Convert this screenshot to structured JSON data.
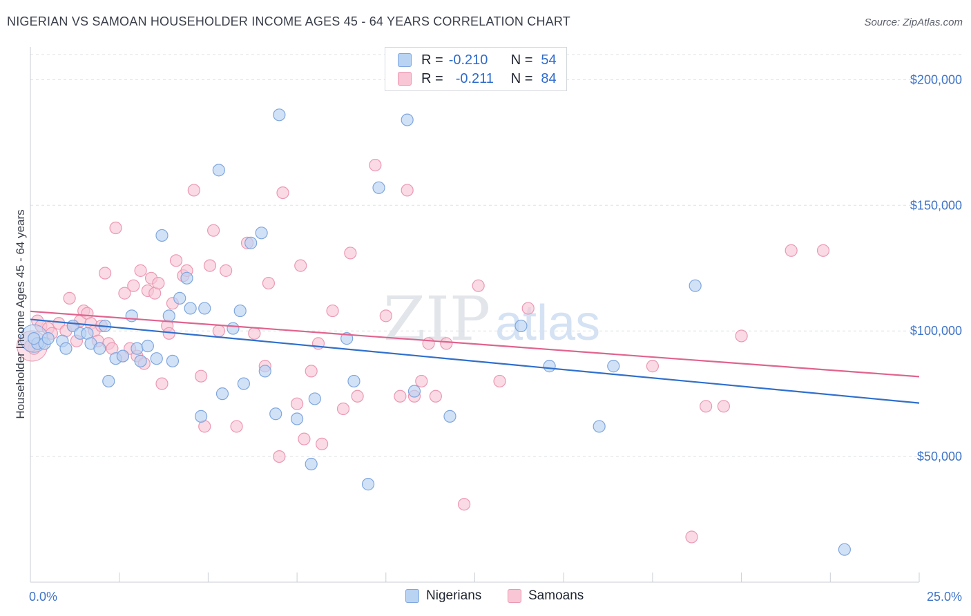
{
  "title": "NIGERIAN VS SAMOAN HOUSEHOLDER INCOME AGES 45 - 64 YEARS CORRELATION CHART",
  "source": "Source: ZipAtlas.com",
  "watermark": {
    "zip": "ZIP",
    "atlas": "atlas"
  },
  "colors": {
    "nigerian_fill": "#b9d3f3",
    "nigerian_stroke": "#7fa6de",
    "nigerian_line": "#2f6fcc",
    "samoan_fill": "#f8c6d5",
    "samoan_stroke": "#ec98b2",
    "samoan_line": "#e0638e",
    "axis_text": "#3f74c9",
    "grid": "#dde1e6"
  },
  "legend": {
    "rows": [
      {
        "r_label": "R =",
        "r_value": "-0.210",
        "n_label": "N =",
        "n_value": "54"
      },
      {
        "r_label": "R =",
        "r_value": "-0.211",
        "n_label": "N =",
        "n_value": "84"
      }
    ]
  },
  "bottom_legend": {
    "nigerians": "Nigerians",
    "samoans": "Samoans"
  },
  "chart_data": {
    "type": "scatter",
    "title": "NIGERIAN VS SAMOAN HOUSEHOLDER INCOME AGES 45 - 64 YEARS CORRELATION CHART",
    "xlabel": "",
    "ylabel": "Householder Income Ages 45 - 64 years",
    "xlim": [
      0,
      25
    ],
    "ylim": [
      0,
      210000
    ],
    "x_tick_labels": [
      "0.0%",
      "25.0%"
    ],
    "y_ticks": [
      50000,
      100000,
      150000,
      200000
    ],
    "y_tick_labels": [
      "$50,000",
      "$100,000",
      "$150,000",
      "$200,000"
    ],
    "grid": true,
    "legend_position": "top-center",
    "series": [
      {
        "name": "Nigerians",
        "r": -0.21,
        "n": 54,
        "trend": {
          "x": [
            0,
            25
          ],
          "y": [
            104600,
            71300
          ]
        },
        "points": [
          [
            0.2,
            95000
          ],
          [
            0.4,
            95000
          ],
          [
            0.5,
            97000
          ],
          [
            0.9,
            96000
          ],
          [
            1.0,
            93000
          ],
          [
            1.2,
            102000
          ],
          [
            1.4,
            99000
          ],
          [
            1.6,
            99000
          ],
          [
            1.7,
            95000
          ],
          [
            1.95,
            93000
          ],
          [
            2.1,
            102000
          ],
          [
            2.2,
            80000
          ],
          [
            2.4,
            89000
          ],
          [
            2.6,
            90000
          ],
          [
            2.85,
            106000
          ],
          [
            3.0,
            93000
          ],
          [
            3.1,
            88000
          ],
          [
            3.3,
            94000
          ],
          [
            3.55,
            89000
          ],
          [
            3.7,
            138000
          ],
          [
            3.9,
            106000
          ],
          [
            4.0,
            88000
          ],
          [
            4.2,
            113000
          ],
          [
            4.4,
            121000
          ],
          [
            4.5,
            109000
          ],
          [
            4.8,
            66000
          ],
          [
            4.9,
            109000
          ],
          [
            5.3,
            164000
          ],
          [
            5.4,
            75000
          ],
          [
            5.7,
            101000
          ],
          [
            5.9,
            108000
          ],
          [
            6.0,
            79000
          ],
          [
            6.2,
            135000
          ],
          [
            6.5,
            139000
          ],
          [
            6.6,
            84000
          ],
          [
            6.9,
            67000
          ],
          [
            7.0,
            186000
          ],
          [
            7.5,
            65000
          ],
          [
            7.9,
            47000
          ],
          [
            8.0,
            73000
          ],
          [
            8.9,
            97000
          ],
          [
            9.1,
            80000
          ],
          [
            9.5,
            39000
          ],
          [
            9.8,
            157000
          ],
          [
            10.6,
            184000
          ],
          [
            10.8,
            76000
          ],
          [
            11.8,
            66000
          ],
          [
            13.8,
            102000
          ],
          [
            14.6,
            86000
          ],
          [
            16.0,
            62000
          ],
          [
            16.4,
            86000
          ],
          [
            18.7,
            118000
          ],
          [
            22.9,
            13000
          ],
          [
            0.1,
            97000
          ]
        ]
      },
      {
        "name": "Samoans",
        "r": -0.211,
        "n": 84,
        "trend": {
          "x": [
            0,
            25
          ],
          "y": [
            107800,
            81800
          ]
        },
        "points": [
          [
            0.1,
            93000
          ],
          [
            0.2,
            104000
          ],
          [
            0.3,
            102000
          ],
          [
            0.5,
            101000
          ],
          [
            0.6,
            99000
          ],
          [
            0.8,
            103000
          ],
          [
            1.0,
            100000
          ],
          [
            1.1,
            113000
          ],
          [
            1.2,
            102000
          ],
          [
            1.3,
            96000
          ],
          [
            1.4,
            104000
          ],
          [
            1.5,
            108000
          ],
          [
            1.6,
            107000
          ],
          [
            1.7,
            103000
          ],
          [
            1.8,
            100000
          ],
          [
            1.9,
            96000
          ],
          [
            2.0,
            102000
          ],
          [
            2.1,
            123000
          ],
          [
            2.2,
            95000
          ],
          [
            2.3,
            93000
          ],
          [
            2.4,
            141000
          ],
          [
            2.6,
            90000
          ],
          [
            2.65,
            115000
          ],
          [
            2.8,
            93000
          ],
          [
            2.9,
            118000
          ],
          [
            3.0,
            90000
          ],
          [
            3.1,
            124000
          ],
          [
            3.2,
            87000
          ],
          [
            3.3,
            116000
          ],
          [
            3.4,
            121000
          ],
          [
            3.5,
            115000
          ],
          [
            3.6,
            119000
          ],
          [
            3.7,
            79000
          ],
          [
            3.85,
            102000
          ],
          [
            3.9,
            99000
          ],
          [
            4.0,
            111000
          ],
          [
            4.1,
            128000
          ],
          [
            4.3,
            122000
          ],
          [
            4.4,
            124000
          ],
          [
            4.6,
            156000
          ],
          [
            4.8,
            82000
          ],
          [
            4.9,
            62000
          ],
          [
            5.05,
            126000
          ],
          [
            5.15,
            140000
          ],
          [
            5.3,
            100000
          ],
          [
            5.5,
            124000
          ],
          [
            5.8,
            62000
          ],
          [
            6.1,
            135000
          ],
          [
            6.3,
            99000
          ],
          [
            6.6,
            86000
          ],
          [
            6.7,
            119000
          ],
          [
            7.0,
            50000
          ],
          [
            7.1,
            155000
          ],
          [
            7.5,
            71000
          ],
          [
            7.6,
            126000
          ],
          [
            7.7,
            57000
          ],
          [
            7.9,
            84000
          ],
          [
            8.1,
            95000
          ],
          [
            8.2,
            55000
          ],
          [
            8.5,
            108000
          ],
          [
            8.8,
            69000
          ],
          [
            9.0,
            131000
          ],
          [
            9.2,
            74000
          ],
          [
            9.7,
            166000
          ],
          [
            10.0,
            106000
          ],
          [
            10.4,
            74000
          ],
          [
            10.6,
            156000
          ],
          [
            10.8,
            74000
          ],
          [
            11.0,
            80000
          ],
          [
            11.2,
            95000
          ],
          [
            11.4,
            74000
          ],
          [
            11.7,
            95000
          ],
          [
            12.2,
            31000
          ],
          [
            12.6,
            118000
          ],
          [
            13.2,
            80000
          ],
          [
            14.0,
            109000
          ],
          [
            17.5,
            86000
          ],
          [
            18.6,
            18000
          ],
          [
            19.0,
            70000
          ],
          [
            19.5,
            70000
          ],
          [
            20.0,
            98000
          ],
          [
            21.4,
            132000
          ],
          [
            22.3,
            132000
          ],
          [
            0.0,
            94000
          ]
        ]
      }
    ]
  }
}
